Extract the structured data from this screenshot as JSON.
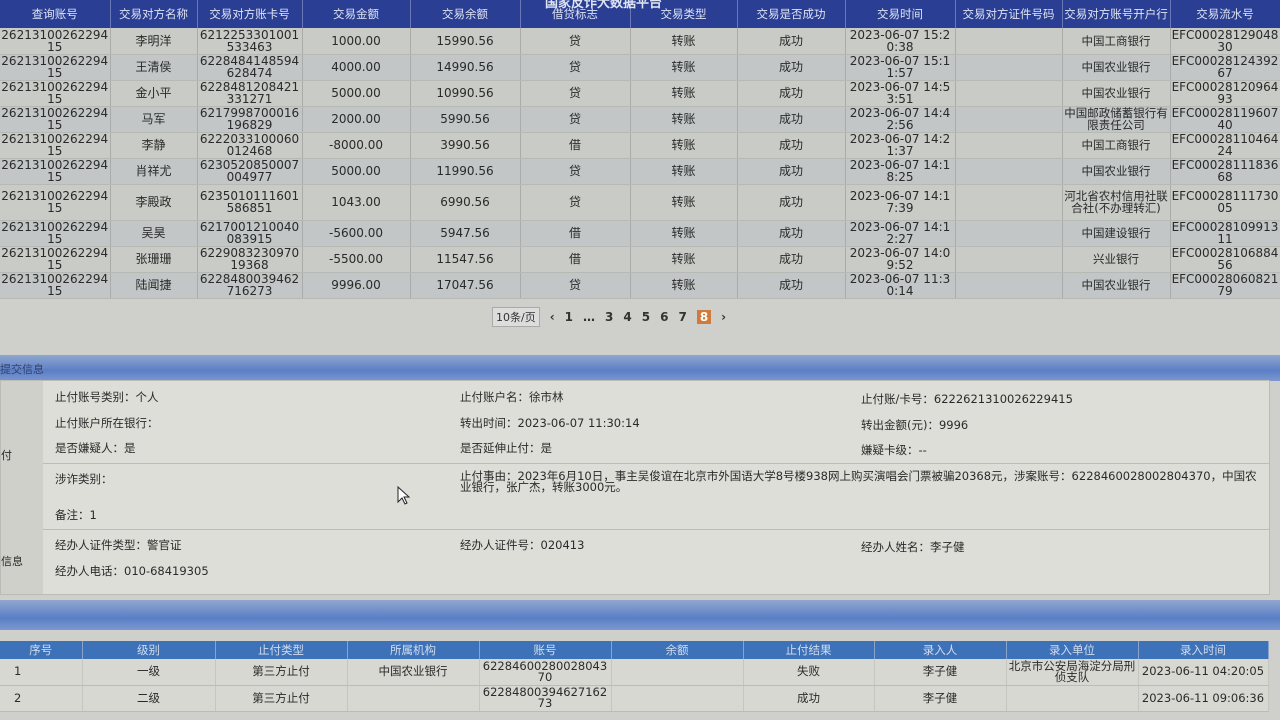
{
  "platform_title": "国家反诈大数据平台",
  "transactions": {
    "headers": [
      "查询账号",
      "交易对方名称",
      "交易对方账卡号",
      "交易金额",
      "交易余额",
      "借贷标志",
      "交易类型",
      "交易是否成功",
      "交易时间",
      "交易对方证件号码",
      "交易对方账号开户行",
      "交易流水号"
    ],
    "rows": [
      [
        "2621310026229415",
        "李明洋",
        "6212253301001533463",
        "1000.00",
        "15990.56",
        "贷",
        "转账",
        "成功",
        "2023-06-07 15:20:38",
        "",
        "中国工商银行",
        "EFC0002812904830"
      ],
      [
        "2621310026229415",
        "王清侯",
        "6228484148594628474",
        "4000.00",
        "14990.56",
        "贷",
        "转账",
        "成功",
        "2023-06-07 15:11:57",
        "",
        "中国农业银行",
        "EFC0002812439267"
      ],
      [
        "2621310026229415",
        "金小平",
        "6228481208421331271",
        "5000.00",
        "10990.56",
        "贷",
        "转账",
        "成功",
        "2023-06-07 14:53:51",
        "",
        "中国农业银行",
        "EFC0002812096493"
      ],
      [
        "2621310026229415",
        "马军",
        "6217998700016196829",
        "2000.00",
        "5990.56",
        "贷",
        "转账",
        "成功",
        "2023-06-07 14:42:56",
        "",
        "中国邮政储蓄银行有限责任公司",
        "EFC0002811960740"
      ],
      [
        "2621310026229415",
        "李静",
        "6222033100060012468",
        "-8000.00",
        "3990.56",
        "借",
        "转账",
        "成功",
        "2023-06-07 14:21:37",
        "",
        "中国工商银行",
        "EFC0002811046424"
      ],
      [
        "2621310026229415",
        "肖祥尤",
        "6230520850007004977",
        "5000.00",
        "11990.56",
        "贷",
        "转账",
        "成功",
        "2023-06-07 14:18:25",
        "",
        "中国农业银行",
        "EFC0002811183668"
      ],
      [
        "2621310026229415",
        "李殿政",
        "6235010111601586851",
        "1043.00",
        "6990.56",
        "贷",
        "转账",
        "成功",
        "2023-06-07 14:17:39",
        "",
        "河北省农村信用社联合社(不办理转汇)",
        "EFC0002811173005"
      ],
      [
        "2621310026229415",
        "吴昊",
        "6217001210040083915",
        "-5600.00",
        "5947.56",
        "借",
        "转账",
        "成功",
        "2023-06-07 14:12:27",
        "",
        "中国建设银行",
        "EFC0002810991311"
      ],
      [
        "2621310026229415",
        "张珊珊",
        "622908323097019368",
        "-5500.00",
        "11547.56",
        "借",
        "转账",
        "成功",
        "2023-06-07 14:09:52",
        "",
        "兴业银行",
        "EFC0002810688456"
      ],
      [
        "2621310026229415",
        "陆闻捷",
        "6228480039462716273",
        "9996.00",
        "17047.56",
        "贷",
        "转账",
        "成功",
        "2023-06-07 11:30:14",
        "",
        "中国农业银行",
        "EFC0002806082179"
      ]
    ]
  },
  "pagination": {
    "page_size": "10条/页",
    "pages": [
      "1",
      "…",
      "3",
      "4",
      "5",
      "6",
      "7",
      "8"
    ],
    "current": "8",
    "prev": "‹",
    "next": "›"
  },
  "submit_section": {
    "title": "提交信息",
    "side_labels": [
      "付",
      "信息"
    ]
  },
  "detail": {
    "account_type": "止付账号类别：个人",
    "account_name": "止付账户名：徐市林",
    "card_no": "止付账/卡号：6222621310026229415",
    "bank": "止付账户所在银行：",
    "out_time": "转出时间：2023-06-07 11:30:14",
    "out_amount": "转出金额(元)：9996",
    "is_suspect": "是否嫌疑人：是",
    "extend": "是否延伸止付：是",
    "suspect_level": "嫌疑卡级：--",
    "fraud_type": "涉诈类别：",
    "reason": "止付事由：2023年6月10日，事主吴俊谊在北京市外国语大学8号楼938网上购买演唱会门票被骗20368元，涉案账号：6228460028002804370，中国农业银行，张广杰，转账3000元。",
    "remark": "备注：1",
    "officer_id_type": "经办人证件类型：警官证",
    "officer_id": "经办人证件号：020413",
    "officer_name": "经办人姓名：李子健",
    "officer_phone": "经办人电话：010-68419305"
  },
  "freeze_records": {
    "headers": [
      "序号",
      "级别",
      "止付类型",
      "所属机构",
      "账号",
      "余额",
      "止付结果",
      "录入人",
      "录入单位",
      "录入时间"
    ],
    "rows": [
      [
        "1",
        "一级",
        "第三方止付",
        "中国农业银行",
        "6228460028002804370",
        "",
        "失败",
        "李子健",
        "北京市公安局海淀分局刑侦支队",
        "2023-06-11 04:20:05"
      ],
      [
        "2",
        "二级",
        "第三方止付",
        "",
        "6228480039462716273",
        "",
        "成功",
        "李子健",
        "",
        "2023-06-11 09:06:36"
      ]
    ]
  },
  "colors": {
    "header": "#2a3f93",
    "section_bar": "#5b7fc6",
    "current_page": "#d07a3c"
  }
}
